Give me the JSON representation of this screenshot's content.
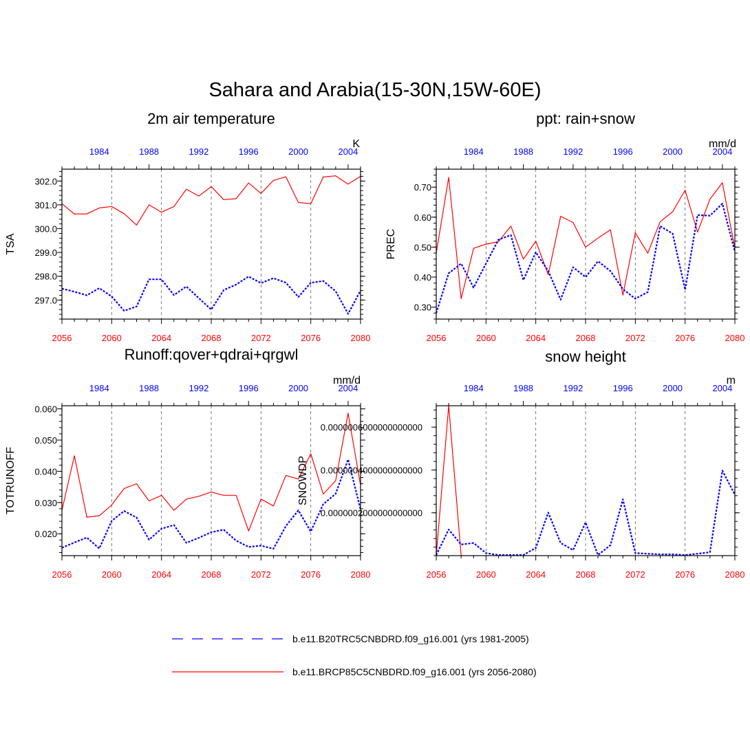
{
  "main_title": "Sahara and Arabia(15-30N,15W-60E)",
  "legend": [
    {
      "label": "b.e11.B20TRC5CNBDRD.f09_g16.001 (yrs 1981-2005)",
      "color": "#0000ff",
      "style": "dashed"
    },
    {
      "label": "b.e11.BRCP85C5CNBDRD.f09_g16.001 (yrs 2056-2080)",
      "color": "#ff0000",
      "style": "solid"
    }
  ],
  "colors": {
    "future": "#ff0000",
    "historical": "#0000ff",
    "axis": "#000000"
  },
  "chart_data": [
    {
      "type": "line",
      "title": "2m air temperature",
      "ylabel": "TSA",
      "units": "K",
      "ylim": [
        296.2,
        302.5
      ],
      "yticks": [
        297.0,
        298.0,
        299.0,
        300.0,
        301.0,
        302.0
      ],
      "ytick_labels": [
        "297.0",
        "298.0",
        "299.0",
        "300.0",
        "301.0",
        "302.0"
      ],
      "x_bottom": {
        "range": [
          2056,
          2080
        ],
        "ticks": [
          2056,
          2060,
          2064,
          2068,
          2072,
          2076,
          2080
        ]
      },
      "x_top": {
        "range": [
          1981,
          2005
        ],
        "ticks": [
          1984,
          1988,
          1992,
          1996,
          2000,
          2004
        ]
      },
      "series": [
        {
          "name": "b.e11.BRCP85C5CNBDRD.f09_g16.001 (yrs 2056-2080)",
          "axis": "bottom",
          "values": [
            301.05,
            300.62,
            300.62,
            300.87,
            300.93,
            300.63,
            300.15,
            301.0,
            300.69,
            300.93,
            301.66,
            301.37,
            301.77,
            301.22,
            301.26,
            301.92,
            301.48,
            302.03,
            302.18,
            301.1,
            301.05,
            302.17,
            302.22,
            301.87,
            302.2
          ]
        },
        {
          "name": "b.e11.B20TRC5CNBDRD.f09_g16.001 (yrs 1981-2005)",
          "axis": "top",
          "values": [
            297.48,
            297.35,
            297.2,
            297.5,
            297.15,
            296.55,
            296.73,
            297.87,
            297.87,
            297.21,
            297.57,
            297.08,
            296.6,
            297.42,
            297.65,
            297.99,
            297.71,
            297.92,
            297.73,
            297.13,
            297.73,
            297.8,
            297.37,
            296.42,
            297.4
          ]
        }
      ]
    },
    {
      "type": "line",
      "title": "ppt: rain+snow",
      "ylabel": "PREC",
      "units": "mm/d",
      "ylim": [
        0.26,
        0.76
      ],
      "yticks": [
        0.3,
        0.4,
        0.5,
        0.6,
        0.7
      ],
      "ytick_labels": [
        "0.30",
        "0.40",
        "0.50",
        "0.60",
        "0.70"
      ],
      "x_bottom": {
        "range": [
          2056,
          2080
        ],
        "ticks": [
          2056,
          2060,
          2064,
          2068,
          2072,
          2076,
          2080
        ]
      },
      "x_top": {
        "range": [
          1981,
          2005
        ],
        "ticks": [
          1984,
          1988,
          1992,
          1996,
          2000,
          2004
        ]
      },
      "series": [
        {
          "name": "b.e11.BRCP85C5CNBDRD.f09_g16.001 (yrs 2056-2080)",
          "axis": "bottom",
          "values": [
            0.48,
            0.733,
            0.328,
            0.496,
            0.51,
            0.518,
            0.57,
            0.46,
            0.52,
            0.408,
            0.603,
            0.582,
            0.5,
            0.53,
            0.558,
            0.34,
            0.548,
            0.48,
            0.585,
            0.618,
            0.69,
            0.55,
            0.66,
            0.715,
            0.495
          ]
        },
        {
          "name": "b.e11.B20TRC5CNBDRD.f09_g16.001 (yrs 1981-2005)",
          "axis": "top",
          "values": [
            0.28,
            0.413,
            0.445,
            0.365,
            0.445,
            0.525,
            0.54,
            0.39,
            0.483,
            0.42,
            0.325,
            0.433,
            0.4,
            0.453,
            0.42,
            0.36,
            0.328,
            0.35,
            0.57,
            0.545,
            0.358,
            0.607,
            0.605,
            0.645,
            0.485
          ]
        }
      ]
    },
    {
      "type": "line",
      "title": "Runoff:qover+qdrai+qrgwl",
      "ylabel": "TOTRUNOFF",
      "units": "mm/d",
      "ylim": [
        0.013,
        0.061
      ],
      "yticks": [
        0.02,
        0.03,
        0.04,
        0.05,
        0.06
      ],
      "ytick_labels": [
        "0.020",
        "0.030",
        "0.040",
        "0.050",
        "0.060"
      ],
      "x_bottom": {
        "range": [
          2056,
          2080
        ],
        "ticks": [
          2056,
          2060,
          2064,
          2068,
          2072,
          2076,
          2080
        ]
      },
      "x_top": {
        "range": [
          1981,
          2005
        ],
        "ticks": [
          1984,
          1988,
          1992,
          1996,
          2000,
          2004
        ]
      },
      "series": [
        {
          "name": "b.e11.BRCP85C5CNBDRD.f09_g16.001 (yrs 2056-2080)",
          "axis": "bottom",
          "values": [
            0.0275,
            0.045,
            0.0253,
            0.0258,
            0.0292,
            0.0345,
            0.036,
            0.0305,
            0.0323,
            0.0275,
            0.0311,
            0.032,
            0.0334,
            0.0323,
            0.0323,
            0.0209,
            0.0311,
            0.0289,
            0.0387,
            0.0375,
            0.0456,
            0.0327,
            0.037,
            0.0586,
            0.0355
          ]
        },
        {
          "name": "b.e11.B20TRC5CNBDRD.f09_g16.001 (yrs 1981-2005)",
          "axis": "top",
          "values": [
            0.0155,
            0.0172,
            0.0188,
            0.0153,
            0.0241,
            0.0273,
            0.0252,
            0.0181,
            0.0216,
            0.0228,
            0.0171,
            0.0187,
            0.0205,
            0.0213,
            0.0178,
            0.0158,
            0.0162,
            0.0152,
            0.0225,
            0.0275,
            0.0207,
            0.0295,
            0.0328,
            0.0438,
            0.0278
          ]
        }
      ]
    },
    {
      "type": "line",
      "title": "snow height",
      "ylabel": "SNOWDP",
      "units": "m",
      "ylim": [
        0.0,
        7e-07
      ],
      "yticks": [
        2e-07,
        4e-07,
        6e-07
      ],
      "ytick_labels": [
        "0.0000002000000000000",
        "0.0000004000000000000",
        "0.0000006000000000000"
      ],
      "x_bottom": {
        "range": [
          2056,
          2080
        ],
        "ticks": [
          2056,
          2060,
          2064,
          2068,
          2072,
          2076,
          2080
        ]
      },
      "x_top": {
        "range": [
          1981,
          2005
        ],
        "ticks": [
          1984,
          1988,
          1992,
          1996,
          2000,
          2004
        ]
      },
      "series": [
        {
          "name": "b.e11.BRCP85C5CNBDRD.f09_g16.001 (yrs 2056-2080)",
          "axis": "bottom",
          "values": [
            0.0,
            7e-07,
            0.0,
            null,
            null,
            null,
            null,
            null,
            null,
            null,
            null,
            null,
            null,
            null,
            null,
            null,
            null,
            null,
            null,
            null,
            null,
            null,
            null,
            null,
            null
          ]
        },
        {
          "name": "b.e11.B20TRC5CNBDRD.f09_g16.001 (yrs 1981-2005)",
          "axis": "top",
          "values": [
            3e-09,
            1.22e-07,
            5.2e-08,
            5.9e-08,
            1.2e-08,
            3e-09,
            3e-09,
            3e-09,
            3.6e-08,
            2.01e-07,
            5.9e-08,
            2.6e-08,
            1.55e-07,
            3e-09,
            4.9e-08,
            2.63e-07,
            1.2e-08,
            9e-09,
            6e-09,
            6e-09,
            3e-09,
            9e-09,
            1.6e-08,
            3.97e-07,
            2.85e-07
          ]
        }
      ]
    }
  ]
}
